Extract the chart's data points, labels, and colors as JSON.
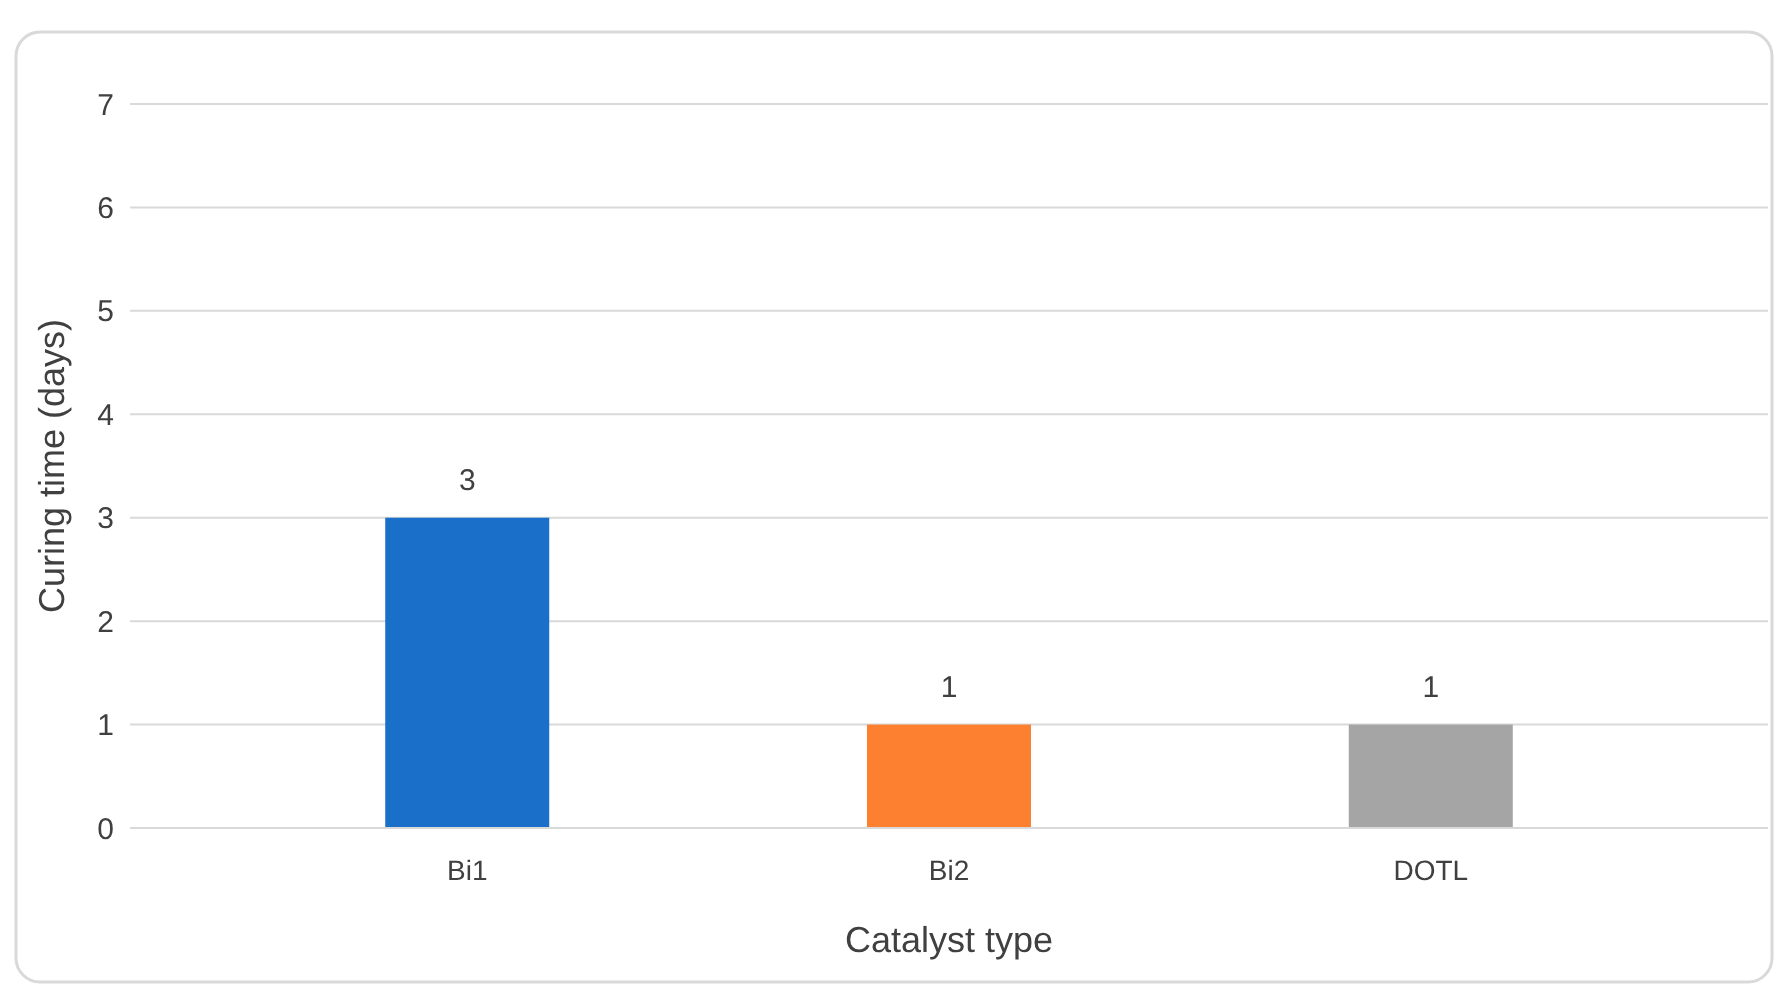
{
  "chart_data": {
    "type": "bar",
    "xlabel": "Catalyst type",
    "ylabel": "Curing time (days)",
    "categories": [
      "Bi1",
      "Bi2",
      "DOTL"
    ],
    "values": [
      3,
      1,
      1
    ],
    "colors": [
      "#1a70c8",
      "#fd8030",
      "#a5a5a5"
    ],
    "ylim": [
      0,
      7
    ],
    "yticks": [
      0,
      1,
      2,
      3,
      4,
      5,
      6,
      7
    ],
    "grid": "y",
    "data_labels": true
  }
}
